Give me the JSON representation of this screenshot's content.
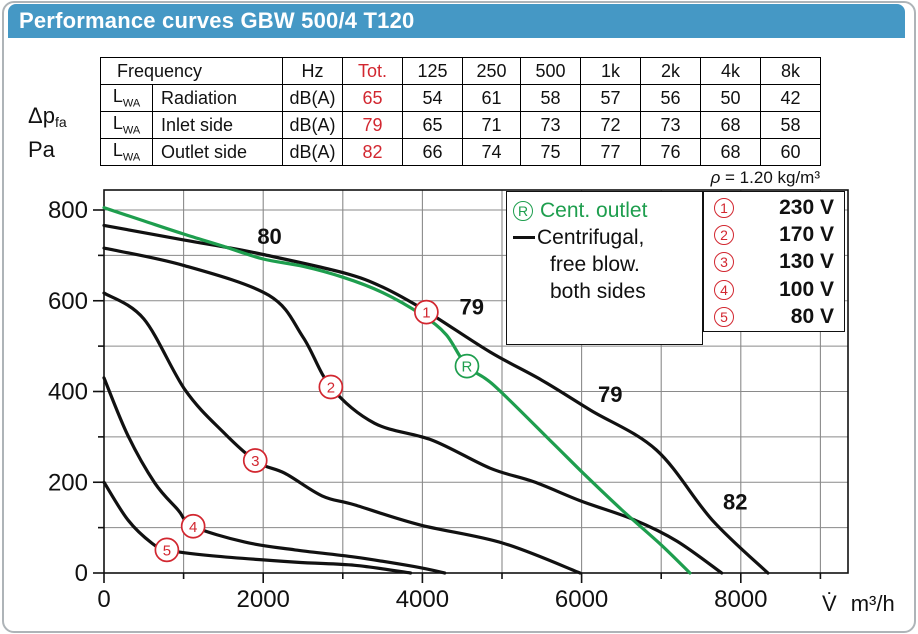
{
  "title": "Performance curves GBW 500/4 T120",
  "colors": {
    "title_bar": "#4598c5",
    "accent_red": "#d22730",
    "curve_green": "#1e9e4e",
    "curve_black": "#111111",
    "grid": "#8a8a8a"
  },
  "sound_table": {
    "header": [
      "Frequency",
      "Hz",
      "Tot.",
      "125",
      "250",
      "500",
      "1k",
      "2k",
      "4k",
      "8k"
    ],
    "row_symbol": "L",
    "row_symbol_sub": "WA",
    "rows": [
      {
        "name": "Radiation",
        "unit": "dB(A)",
        "tot": "65",
        "bands": [
          "54",
          "61",
          "58",
          "57",
          "56",
          "50",
          "42"
        ]
      },
      {
        "name": "Inlet side",
        "unit": "dB(A)",
        "tot": "79",
        "bands": [
          "65",
          "71",
          "73",
          "72",
          "73",
          "68",
          "58"
        ]
      },
      {
        "name": "Outlet side",
        "unit": "dB(A)",
        "tot": "82",
        "bands": [
          "66",
          "74",
          "75",
          "77",
          "76",
          "68",
          "60"
        ]
      }
    ]
  },
  "density_note": {
    "symbol": "ρ",
    "text": " = 1.20 kg/m³"
  },
  "y_axis": {
    "label_dp": "Δp",
    "label_dp_sub": "fa",
    "label_unit": "Pa",
    "tick_labels": [
      800,
      600,
      400,
      200,
      0
    ]
  },
  "x_axis": {
    "tick_labels": [
      0,
      2000,
      4000,
      6000,
      8000
    ],
    "flow_symbol": "V̇",
    "flow_unit": "m³/h"
  },
  "legend": {
    "outlet_symbol": "R",
    "outlet_label": "Cent. outlet",
    "line_label_1": "Centrifugal,",
    "line_label_2": "free blow.",
    "line_label_3": "both sides",
    "voltages": [
      {
        "number": "1",
        "label": "230 V"
      },
      {
        "number": "2",
        "label": "170 V"
      },
      {
        "number": "3",
        "label": "130 V"
      },
      {
        "number": "4",
        "label": "100 V"
      },
      {
        "number": "5",
        "label": "80 V"
      }
    ]
  },
  "chart_data": {
    "type": "line",
    "title": "Performance curves GBW 500/4 T120",
    "xlabel": "V̇ m³/h",
    "ylabel": "Δp_fa Pa",
    "xlim": [
      0,
      9350
    ],
    "ylim": [
      0,
      845
    ],
    "x_gridline_step": 1000,
    "y_gridline_step": 100,
    "x_labeled_tick_step": 2000,
    "y_labeled_tick_step": 200,
    "grid": true,
    "legend_position": "top-right",
    "series": [
      {
        "name": "230 V",
        "marker_number": "1",
        "color": "black",
        "points": [
          [
            0,
            766
          ],
          [
            1000,
            734
          ],
          [
            1500,
            719
          ],
          [
            2000,
            702
          ],
          [
            3000,
            662
          ],
          [
            3500,
            630
          ],
          [
            4050,
            577
          ],
          [
            4850,
            487
          ],
          [
            5500,
            425
          ],
          [
            6110,
            359
          ],
          [
            6940,
            271
          ],
          [
            7640,
            117
          ],
          [
            8340,
            0
          ]
        ]
      },
      {
        "name": "170 V",
        "marker_number": "2",
        "color": "black",
        "points": [
          [
            0,
            716
          ],
          [
            1000,
            678
          ],
          [
            2070,
            612
          ],
          [
            2500,
            520
          ],
          [
            2850,
            410
          ],
          [
            3400,
            330
          ],
          [
            4120,
            293
          ],
          [
            4850,
            231
          ],
          [
            5400,
            201
          ],
          [
            6000,
            158
          ],
          [
            6650,
            118
          ],
          [
            7200,
            70
          ],
          [
            7760,
            0
          ]
        ]
      },
      {
        "name": "130 V",
        "marker_number": "3",
        "color": "black",
        "points": [
          [
            0,
            617
          ],
          [
            500,
            560
          ],
          [
            1020,
            403
          ],
          [
            1500,
            310
          ],
          [
            1920,
            245
          ],
          [
            2270,
            220
          ],
          [
            2740,
            170
          ],
          [
            3150,
            150
          ],
          [
            3970,
            106
          ],
          [
            5010,
            66
          ],
          [
            5980,
            0
          ]
        ]
      },
      {
        "name": "100 V",
        "marker_number": "4",
        "color": "black",
        "points": [
          [
            0,
            430
          ],
          [
            300,
            303
          ],
          [
            640,
            198
          ],
          [
            930,
            139
          ],
          [
            1120,
            103
          ],
          [
            1770,
            68
          ],
          [
            2400,
            51
          ],
          [
            3150,
            35
          ],
          [
            3900,
            14
          ],
          [
            4280,
            0
          ]
        ]
      },
      {
        "name": "80 V",
        "marker_number": "5",
        "color": "black",
        "points": [
          [
            0,
            200
          ],
          [
            300,
            117
          ],
          [
            600,
            66
          ],
          [
            790,
            51
          ],
          [
            1360,
            38
          ],
          [
            2400,
            24
          ],
          [
            3150,
            17
          ],
          [
            3850,
            0
          ]
        ]
      },
      {
        "name": "Cent. outlet",
        "marker_number": "R",
        "color": "green",
        "points": [
          [
            0,
            805
          ],
          [
            500,
            776
          ],
          [
            1000,
            747
          ],
          [
            1500,
            720
          ],
          [
            2000,
            692
          ],
          [
            2500,
            676
          ],
          [
            3000,
            652
          ],
          [
            3500,
            618
          ],
          [
            4000,
            568
          ],
          [
            4300,
            525
          ],
          [
            4560,
            456
          ],
          [
            4890,
            415
          ],
          [
            5600,
            293
          ],
          [
            6020,
            220
          ],
          [
            6500,
            140
          ],
          [
            7000,
            62
          ],
          [
            7360,
            0
          ]
        ]
      }
    ],
    "markers": [
      {
        "number": "1",
        "x": 4050,
        "y": 575,
        "color": "red"
      },
      {
        "number": "2",
        "x": 2850,
        "y": 410,
        "color": "red"
      },
      {
        "number": "3",
        "x": 1900,
        "y": 248,
        "color": "red"
      },
      {
        "number": "4",
        "x": 1120,
        "y": 103,
        "color": "red"
      },
      {
        "number": "5",
        "x": 790,
        "y": 51,
        "color": "red"
      },
      {
        "number": "R",
        "x": 4560,
        "y": 456,
        "color": "green"
      }
    ],
    "noise_labels": [
      {
        "text": "80",
        "x": 2080,
        "y": 740
      },
      {
        "text": "79",
        "x": 4620,
        "y": 585
      },
      {
        "text": "79",
        "x": 6360,
        "y": 392
      },
      {
        "text": "82",
        "x": 7930,
        "y": 155
      }
    ]
  }
}
